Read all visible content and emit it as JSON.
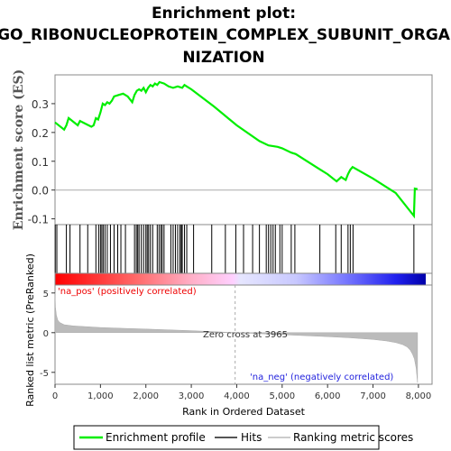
{
  "chart_data": {
    "type": "line",
    "title_lines": [
      "Enrichment plot:",
      "GO_RIBONUCLEOPROTEIN_COMPLEX_SUBUNIT_ORGA",
      "NIZATION"
    ],
    "es_ylabel": "Enrichment score (ES)",
    "metric_ylabel": "Ranked list metric (PreRanked)",
    "xlabel": "Rank in Ordered Dataset",
    "es_yticks": [
      "0.3",
      "0.2",
      "0.1",
      "0.0",
      "-0.1"
    ],
    "es_ytick_values": [
      0.3,
      0.2,
      0.1,
      0.0,
      -0.1
    ],
    "es_ylim": [
      -0.12,
      0.4
    ],
    "metric_yticks": [
      "5",
      "0",
      "-5"
    ],
    "metric_ytick_values": [
      5,
      0,
      -5
    ],
    "metric_ylim": [
      -6.5,
      6
    ],
    "xticks": [
      "0",
      "1,000",
      "2,000",
      "3,000",
      "4,000",
      "5,000",
      "6,000",
      "7,000",
      "8,000"
    ],
    "xtick_values": [
      0,
      1000,
      2000,
      3000,
      4000,
      5000,
      6000,
      7000,
      8000
    ],
    "xlim": [
      0,
      8300
    ],
    "n_genes": 7980,
    "zero_cross_label": "Zero cross at 3965",
    "zero_cross": 3965,
    "pos_label": "'na_pos' (positively correlated)",
    "neg_label": "'na_neg' (negatively correlated)",
    "enrichment_profile": {
      "x": [
        0,
        200,
        250,
        300,
        500,
        550,
        800,
        850,
        900,
        950,
        1000,
        1050,
        1100,
        1150,
        1200,
        1250,
        1300,
        1400,
        1500,
        1600,
        1700,
        1750,
        1800,
        1850,
        1900,
        1950,
        2000,
        2050,
        2100,
        2150,
        2200,
        2250,
        2300,
        2400,
        2500,
        2600,
        2700,
        2800,
        2850,
        2900,
        3000,
        3500,
        4000,
        4500,
        4700,
        4900,
        5000,
        5200,
        5300,
        5800,
        6000,
        6200,
        6300,
        6400,
        6450,
        6500,
        6550,
        7000,
        7500,
        7900,
        7920,
        7980
      ],
      "y": [
        0.235,
        0.21,
        0.225,
        0.25,
        0.225,
        0.24,
        0.22,
        0.225,
        0.25,
        0.245,
        0.27,
        0.3,
        0.295,
        0.305,
        0.3,
        0.31,
        0.325,
        0.33,
        0.335,
        0.325,
        0.305,
        0.33,
        0.345,
        0.35,
        0.345,
        0.355,
        0.34,
        0.355,
        0.365,
        0.36,
        0.37,
        0.365,
        0.375,
        0.37,
        0.36,
        0.355,
        0.36,
        0.355,
        0.365,
        0.36,
        0.35,
        0.29,
        0.225,
        0.17,
        0.155,
        0.15,
        0.145,
        0.13,
        0.125,
        0.075,
        0.055,
        0.03,
        0.045,
        0.035,
        0.055,
        0.07,
        0.08,
        0.04,
        -0.01,
        -0.09,
        0.005,
        0.003
      ]
    },
    "hits": [
      5,
      40,
      250,
      330,
      550,
      720,
      900,
      960,
      1000,
      1030,
      1060,
      1100,
      1150,
      1220,
      1300,
      1380,
      1450,
      1550,
      1750,
      1790,
      1820,
      1850,
      1900,
      1950,
      2000,
      2030,
      2060,
      2100,
      2150,
      2250,
      2290,
      2330,
      2360,
      2400,
      2550,
      2600,
      2650,
      2700,
      2750,
      2780,
      2800,
      2850,
      2900,
      3050,
      3450,
      3750,
      3980,
      4150,
      4350,
      4500,
      4650,
      4700,
      4750,
      4800,
      4850,
      4950,
      5000,
      5200,
      5280,
      5830,
      6180,
      6300,
      6450,
      6500,
      6560,
      7900
    ],
    "metric_curve": {
      "x": [
        0,
        10,
        30,
        60,
        100,
        200,
        400,
        700,
        1000,
        1500,
        2000,
        2500,
        3000,
        3500,
        3965,
        4500,
        5000,
        5500,
        6000,
        6500,
        7000,
        7300,
        7500,
        7650,
        7750,
        7820,
        7870,
        7910,
        7950,
        7980
      ],
      "y": [
        5.0,
        3.2,
        2.2,
        1.6,
        1.3,
        1.0,
        0.85,
        0.75,
        0.65,
        0.55,
        0.45,
        0.35,
        0.25,
        0.12,
        0.0,
        -0.12,
        -0.25,
        -0.38,
        -0.5,
        -0.65,
        -0.85,
        -1.05,
        -1.25,
        -1.5,
        -1.8,
        -2.2,
        -2.7,
        -3.3,
        -4.5,
        -6.3
      ]
    },
    "legend": [
      "Enrichment profile",
      "Hits",
      "Ranking metric scores"
    ],
    "colors": {
      "profile": "#00ee00",
      "hits": "#000000",
      "metric_fill": "#bbbbbb",
      "zero_line": "#aaaaaa"
    }
  }
}
